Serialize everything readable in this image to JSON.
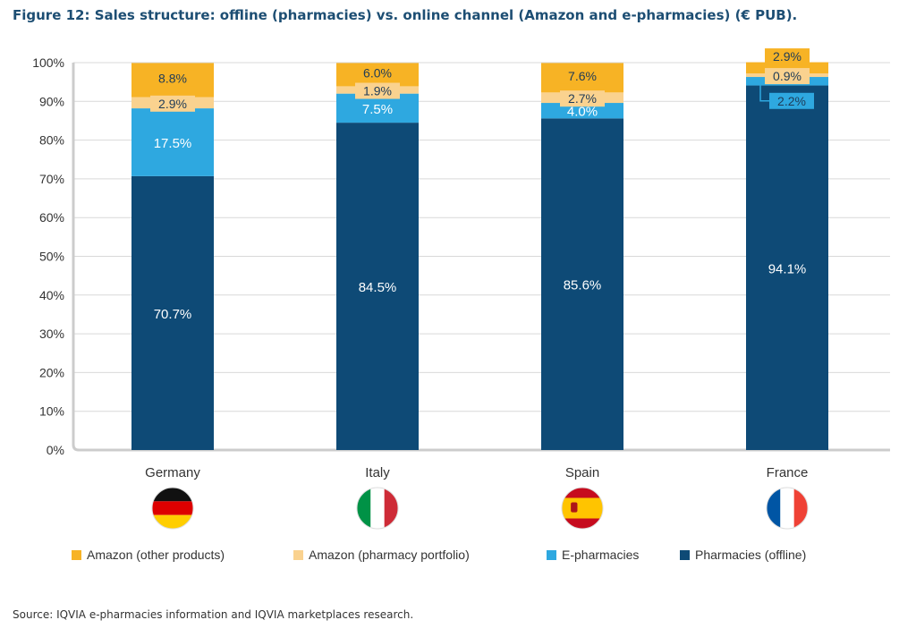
{
  "title": "Figure 12: Sales structure: offline (pharmacies) vs. online channel (Amazon and e-pharmacies) (€ PUB).",
  "source": "Source: IQVIA e-pharmacies information and IQVIA marketplaces research.",
  "colors": {
    "amazon_other": "#f7b325",
    "amazon_portfolio": "#fad28f",
    "epharmacies": "#2ea8e0",
    "pharmacies": "#0e4a76",
    "grid": "#d9d9d9",
    "axis": "#cccccc"
  },
  "flags": [
    {
      "country": "Germany",
      "icon": "germany-flag-icon"
    },
    {
      "country": "Italy",
      "icon": "italy-flag-icon"
    },
    {
      "country": "Spain",
      "icon": "spain-flag-icon"
    },
    {
      "country": "France",
      "icon": "france-flag-icon"
    }
  ],
  "chart_data": {
    "type": "bar",
    "stacked": true,
    "categories": [
      "Germany",
      "Italy",
      "Spain",
      "France"
    ],
    "series": [
      {
        "name": "Pharmacies (offline)",
        "values": [
          70.7,
          84.5,
          85.6,
          94.1
        ],
        "labels": [
          "70.7%",
          "84.5%",
          "85.6%",
          "94.1%"
        ]
      },
      {
        "name": "E-pharmacies",
        "values": [
          17.5,
          7.5,
          4.0,
          2.2
        ],
        "labels": [
          "17.5%",
          "7.5%",
          "4.0%",
          "2.2%"
        ]
      },
      {
        "name": "Amazon (pharmacy portfolio)",
        "values": [
          2.9,
          1.9,
          2.7,
          0.9
        ],
        "labels": [
          "2.9%",
          "1.9%",
          "2.7%",
          "0.9%"
        ]
      },
      {
        "name": "Amazon (other products)",
        "values": [
          8.8,
          6.0,
          7.6,
          2.9
        ],
        "labels": [
          "8.8%",
          "6.0%",
          "7.6%",
          "2.9%"
        ]
      }
    ],
    "legend_order": [
      "Amazon (other products)",
      "Amazon (pharmacy portfolio)",
      "E-pharmacies",
      "Pharmacies (offline)"
    ],
    "y_ticks": [
      "0%",
      "10%",
      "20%",
      "30%",
      "40%",
      "50%",
      "60%",
      "70%",
      "80%",
      "90%",
      "100%"
    ],
    "ylim": [
      0,
      100
    ],
    "grid": true,
    "legend_position": "bottom"
  }
}
